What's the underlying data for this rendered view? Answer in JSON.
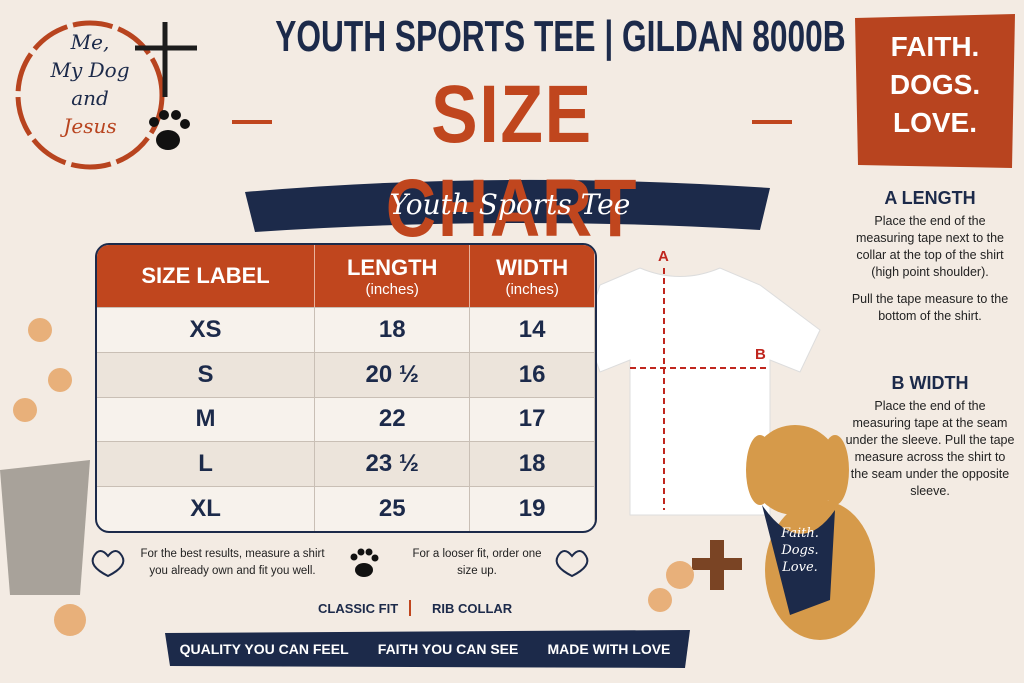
{
  "logo": {
    "lines": [
      "Me,",
      "My Dog",
      "and",
      "Jesus"
    ]
  },
  "header": {
    "title": "YOUTH SPORTS TEE | GILDAN 8000B",
    "headline": "SIZE CHART",
    "subtitle": "Youth Sports Tee"
  },
  "badge": {
    "lines": [
      "FAITH.",
      "DOGS.",
      "LOVE."
    ]
  },
  "table": {
    "columns": [
      {
        "label": "SIZE LABEL"
      },
      {
        "label": "LENGTH",
        "unit": "(inches)"
      },
      {
        "label": "WIDTH",
        "unit": "(inches)"
      }
    ],
    "rows": [
      [
        "XS",
        "18",
        "14"
      ],
      [
        "S",
        "20 ½",
        "16"
      ],
      [
        "M",
        "22",
        "17"
      ],
      [
        "L",
        "23 ½",
        "18"
      ],
      [
        "XL",
        "25",
        "19"
      ]
    ]
  },
  "diagram": {
    "a": "A",
    "b": "B"
  },
  "instructions": [
    {
      "title": "A LENGTH",
      "paragraphs": [
        "Place the end of the measuring tape next to the collar at the top of the shirt (high point shoulder).",
        "Pull the tape measure to the bottom of the shirt."
      ]
    },
    {
      "title": "B WIDTH",
      "paragraphs": [
        "Place the end of the measuring tape at the seam under the sleeve. Pull the tape measure across the shirt to the seam under the opposite sleeve."
      ]
    }
  ],
  "bandana": {
    "lines": [
      "Faith.",
      "Dogs.",
      "Love."
    ]
  },
  "tips": [
    "For the best results, measure a shirt you already own and fit you well.",
    "For a looser fit, order one size up."
  ],
  "features": [
    "CLASSIC FIT",
    "RIB COLLAR"
  ],
  "footer": [
    "QUALITY YOU CAN FEEL",
    "FAITH YOU CAN SEE",
    "MADE WITH LOVE"
  ]
}
